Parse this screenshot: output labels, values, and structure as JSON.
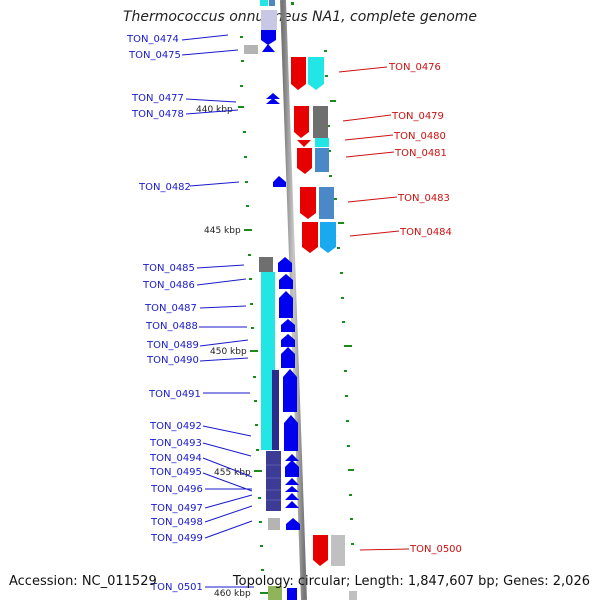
{
  "title": "Thermococcus onnurineus NA1, complete genome",
  "footer": {
    "accession": "Accession: NC_011529",
    "topology": "Topology: circular; Length: 1,847,607 bp; Genes: 2,026"
  },
  "colors": {
    "forward": "#e60000",
    "reverse": "#0000ee",
    "cyan": "#22e6e6",
    "steel": "#4a88c8",
    "dark_gray": "#6f6f6f",
    "light_gray": "#c0c0c0",
    "navy": "#3c3c96",
    "olive": "#8fb45a",
    "tick": "#1a8a1a",
    "left_label": "#1a1acc",
    "right_label": "#cc1111"
  },
  "scale_labels": [
    "440 kbp",
    "445 kbp",
    "450 kbp",
    "455 kbp",
    "460 kbp"
  ],
  "left_genes": [
    "TON_0474",
    "TON_0475",
    "TON_0477",
    "TON_0478",
    "TON_0482",
    "TON_0485",
    "TON_0486",
    "TON_0487",
    "TON_0488",
    "TON_0489",
    "TON_0490",
    "TON_0491",
    "TON_0492",
    "TON_0493",
    "TON_0494",
    "TON_0495",
    "TON_0496",
    "TON_0497",
    "TON_0498",
    "TON_0499",
    "TON_0501"
  ],
  "right_genes": [
    "TON_0476",
    "TON_0479",
    "TON_0480",
    "TON_0481",
    "TON_0483",
    "TON_0484",
    "TON_0500"
  ]
}
